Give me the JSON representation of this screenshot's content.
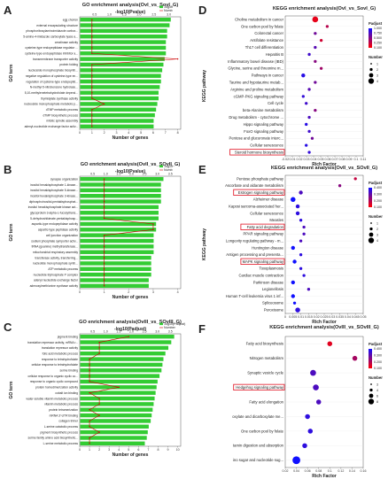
{
  "chart_data": [
    {
      "id": "A",
      "type": "bar",
      "title": "GO enrichment analysis(OvI_vs_SovI_G)",
      "top_axis_label": "-log10(Pvalue)",
      "xlabel": "Number of genes",
      "ylabel": "GO term",
      "xlim": [
        0,
        8
      ],
      "top_ticks": [
        "0.5",
        "1.0",
        "1.5",
        "2.0",
        "2.5",
        "3.0"
      ],
      "legend": [
        "-log10",
        "Numb"
      ],
      "categories": [
        "egg chorion",
        "external encapsulating structure",
        "phosphoribosylaminoimidazole carbox...",
        "5-amino-4-imidazole carboxylate lyase a...",
        "creatinase activity",
        "cysteine-type endopeptidase regulator ...",
        "cysteine-type endopeptidase inhibitor a...",
        "transmembrane transporter activity",
        "protein folding",
        "nucleoside monophosphate biosynth...",
        "negative regulation of cysteine-type en...",
        "regulation of cysteine-type endopeptid...",
        "N-methyl-5-nitrobenzene hydrolase...",
        "5,10-methylenetetrahydrofolate depend...",
        "thymidylate synthase activity",
        "nucleoside monophosphate metabolic p...",
        "dTMP metabolic process",
        "dTMP biosynthetic process",
        "mitotic spindle assembly",
        "adenyl-nucleotide exchange factor activ..."
      ],
      "values": [
        7.4,
        7.3,
        7.1,
        7.1,
        7.0,
        7.0,
        7.0,
        6.9,
        6.8,
        6.7,
        6.6,
        6.6,
        6.5,
        6.4,
        6.4,
        6.3,
        6.2,
        6.1,
        6.0,
        6.0
      ],
      "number": [
        1,
        1,
        1,
        1,
        1,
        1,
        1,
        8,
        1,
        1,
        1,
        1,
        1,
        1,
        1,
        2,
        1,
        1,
        1,
        1
      ]
    },
    {
      "id": "B",
      "type": "bar",
      "title": "GO enrichment analysis(OvII_vs_SOvII_G)",
      "top_axis_label": "-log10(Pvalue)",
      "xlabel": "Number of genes",
      "ylabel": "GO term",
      "xlim": [
        0,
        4
      ],
      "top_ticks": [
        "0.5",
        "1.0",
        "1.5",
        "2.0",
        "2.5",
        "3.0",
        "3.5"
      ],
      "legend": [
        "-log10",
        "Numb"
      ],
      "categories": [
        "synapse organization",
        "inositol hexakisphosphate 1-kinase...",
        "inositol hexakisphosphate 5-kinase...",
        "inositol hexakisphosphate 3-kinase...",
        "diphosphoinositol-pentakisphosphat...",
        "inositol hexakisphosphate kinase act...",
        "glycoprotein 3-alpha-L-fucosyltrans...",
        "5-dehydroshikimate-pentakisphosp...",
        "aspartic-type endopeptidase activity",
        "aspartic-type peptidase activity",
        "cell junction organization",
        "sodium:phosphate symporter activ...",
        "tRNA (guanine) methyltransferase...",
        "mitochondrial respiratory assembly",
        "transferase activity, transferring...",
        "nucleotide monophosphate synth...",
        "ATP metabolic process",
        "nucleotide triphosphate P complex",
        "adenyl nucleotide exchange factor",
        "adenosylmethionine synthase activity"
      ],
      "values": [
        3.4,
        3.3,
        3.3,
        3.3,
        3.3,
        3.2,
        3.2,
        3.2,
        3.1,
        3.1,
        3.0,
        3.0,
        3.0,
        3.0,
        2.9,
        2.9,
        2.9,
        2.9,
        2.8,
        2.8
      ],
      "number": [
        1,
        1,
        1,
        1,
        1,
        1,
        1,
        1,
        3,
        3,
        1,
        1,
        1,
        1,
        1,
        1,
        1,
        1,
        1,
        1
      ]
    },
    {
      "id": "C",
      "type": "bar",
      "title": "GO enrichment analysis(OvIII_vs_SOvIII_G)",
      "top_axis_label": "-log10(Padjust)",
      "xlabel": "Number of genes",
      "ylabel": "GO term",
      "xlim": [
        0,
        10
      ],
      "top_ticks": [
        "0.5",
        "1.0",
        "1.5",
        "2.0",
        "2.5",
        "3.0",
        "3.5"
      ],
      "legend": [
        "-log10(Padjust)",
        "Number"
      ],
      "categories": [
        "pigment binding",
        "translation repressor activity, mRNA r...",
        "translation repressor activity",
        "folic acid metabolic process",
        "response to tetrahydrofolate",
        "cellular response to tetrahydrofolate",
        "serine binding",
        "cellular response to organic cyclic co...",
        "response to organic cyclic compound",
        "protein homodimerization activity",
        "cobalt ion binding",
        "water-soluble vitamin metabolic process",
        "vitamin metabolic process",
        "protein tetramerization",
        "mRNA 3'-UTR binding",
        "collagen trimer",
        "L-serine catabolic process",
        "pigment biosynthetic process",
        "serine family amino acid biosynthetic...",
        "L-serine metabolic process"
      ],
      "values": [
        9.6,
        9.3,
        9.0,
        8.7,
        8.5,
        8.4,
        8.3,
        8.1,
        7.9,
        7.8,
        7.7,
        7.6,
        7.5,
        7.4,
        7.3,
        7.2,
        7.0,
        6.9,
        6.8,
        6.6
      ],
      "number": [
        5,
        2,
        2,
        2,
        1,
        1,
        1,
        1,
        1,
        4,
        1,
        2,
        2,
        1,
        2,
        1,
        1,
        2,
        1,
        1
      ]
    },
    {
      "id": "D",
      "type": "scatter",
      "title": "KEGG enrichment analysis(OvI_vs_SovI_G)",
      "xlabel": "Rich Factor",
      "ylabel": "KEGG pathway",
      "xlim": [
        -0.02,
        0.11
      ],
      "x_ticks": [
        "-0.02",
        "0.01",
        "0.02",
        "0.03",
        "0.04",
        "0.05",
        "0.06",
        "0.07",
        "0.08",
        "0.09",
        "0.1",
        "0.11"
      ],
      "highlight": "Steroid hormone biosynthesis",
      "color_legend_title": "Padjust",
      "color_ticks": [
        "1.000",
        "0.750",
        "0.500",
        "0.250",
        "0.100"
      ],
      "size_legend_title": "Number",
      "size_ticks": [
        "1",
        "2",
        "3",
        "4"
      ],
      "categories": [
        "Choline metabolism in cancer",
        "One carbon pool by folate",
        "Colorectal cancer",
        "Antifolate resistance",
        "Th17 cell differentiation",
        "Hepatitis B",
        "Inflammatory bowel disease (IBD)",
        "Glycine, serine and threonine m...",
        "Pathways in cancer",
        "Taurine and hypotaurine metab...",
        "Arginine and proline metabolism",
        "cGMP-PKG signaling pathway",
        "Cell cycle",
        "beta-Alanine metabolism",
        "Drug metabolism - cytochrome ...",
        "Hippo signaling pathway",
        "FoxO signaling pathway",
        "Pentose and glucuronate interc...",
        "Cellular senescence",
        "Steroid hormone biosynthesis"
      ],
      "rich_factor": [
        0.03,
        0.05,
        0.03,
        0.04,
        0.03,
        0.02,
        0.03,
        0.04,
        0.01,
        0.03,
        0.02,
        0.01,
        0.015,
        0.03,
        0.02,
        0.015,
        0.02,
        0.025,
        0.015,
        0.02
      ],
      "number": [
        4,
        1,
        1,
        1,
        1,
        1,
        1,
        1,
        2,
        1,
        1,
        1,
        1,
        1,
        1,
        1,
        1,
        1,
        1,
        1
      ],
      "padjust": [
        0.1,
        0.3,
        0.6,
        0.2,
        0.7,
        0.8,
        0.5,
        0.4,
        0.9,
        0.6,
        0.7,
        0.85,
        0.8,
        0.5,
        0.75,
        0.9,
        0.8,
        0.6,
        0.9,
        0.85
      ]
    },
    {
      "id": "E",
      "type": "scatter",
      "title": "KEGG enrichment analysis(OvII_vs_SOvII_G)",
      "xlabel": "Rich Factor",
      "ylabel": "KEGG pathway",
      "xlim": [
        0,
        0.05
      ],
      "x_ticks": [
        "0",
        "0.005",
        "0.01",
        "0.015",
        "0.02",
        "0.025",
        "0.03",
        "0.035",
        "0.04",
        "0.045",
        "0.05"
      ],
      "highlight": [
        "Estrogen signaling pathway",
        "Fatty acid degradation",
        "MAPK signaling pathway"
      ],
      "color_legend_title": "Padjust",
      "color_ticks": [
        "0.400",
        "0.300",
        "0.200",
        "0.100"
      ],
      "size_legend_title": "Number",
      "size_ticks": [
        "1",
        "2",
        "3",
        "4"
      ],
      "categories": [
        "Pentose phosphate pathway",
        "Ascorbate and aldarate metabolism",
        "Estrogen signaling pathway",
        "Alzheimer disease",
        "Kaposi sarcoma-associated her...",
        "Cellular senescence",
        "Measles",
        "Fatty acid degradation",
        "PPAR signaling pathway",
        "Longevity regulating pathway - m...",
        "Huntington disease",
        "Antigen processing and presenta...",
        "MAPK signaling pathway",
        "Toxoplasmosis",
        "Cardiac muscle contraction",
        "Parkinson disease",
        "Legionellosis",
        "Human T-cell leukemia virus 1 inf...",
        "Spliceosome",
        "Peroxisome"
      ],
      "rich_factor": [
        0.045,
        0.035,
        0.01,
        0.005,
        0.008,
        0.008,
        0.01,
        0.012,
        0.012,
        0.01,
        0.005,
        0.01,
        0.006,
        0.01,
        0.012,
        0.005,
        0.015,
        0.005,
        0.006,
        0.008
      ],
      "number": [
        1,
        1,
        2,
        3,
        2,
        2,
        1,
        1,
        1,
        1,
        2,
        1,
        2,
        1,
        1,
        2,
        1,
        2,
        1,
        3
      ],
      "padjust": [
        0.1,
        0.2,
        0.3,
        0.4,
        0.35,
        0.35,
        0.35,
        0.3,
        0.3,
        0.3,
        0.4,
        0.35,
        0.4,
        0.35,
        0.35,
        0.4,
        0.3,
        0.4,
        0.4,
        0.35
      ]
    },
    {
      "id": "F",
      "type": "scatter",
      "title": "KEGG enrichment analysis(OvIII_vs_SOvIII_G)",
      "xlabel": "Rich Factor",
      "ylabel": "",
      "xlim": [
        0.02,
        0.16
      ],
      "x_ticks": [
        "0.02",
        "0.04",
        "0.06",
        "0.08",
        "0.1",
        "0.12",
        "0.14",
        "0.16"
      ],
      "highlight": "Hedgehog signaling pathway",
      "color_legend_title": "Padjust",
      "color_ticks": [
        "0.400",
        "0.300",
        "0.200",
        "0.100"
      ],
      "size_legend_title": "Number",
      "size_ticks": [
        "3",
        "4",
        "6",
        "8"
      ],
      "categories": [
        "Fatty acid biosynthesis",
        "Nitrogen metabolism",
        "Synaptic vesicle cycle",
        "Hedgehog signaling pathway",
        "Fatty acid elongation",
        "oxylate and dicarboxylate me...",
        "One carbon pool by folate",
        "tamin digestion and absorption",
        "ino sugar and nucleotide sug..."
      ],
      "rich_factor": [
        0.1,
        0.145,
        0.07,
        0.075,
        0.08,
        0.06,
        0.065,
        0.055,
        0.04
      ],
      "number": [
        3,
        3,
        4,
        4,
        3,
        3,
        3,
        3,
        6
      ],
      "padjust": [
        0.05,
        0.15,
        0.3,
        0.3,
        0.3,
        0.35,
        0.35,
        0.35,
        0.4
      ]
    }
  ],
  "colors": {
    "bar": "#33cc33",
    "line": "#cc0000",
    "highlight": "#e01020",
    "low": "#ff0000",
    "high": "#1010ff"
  }
}
